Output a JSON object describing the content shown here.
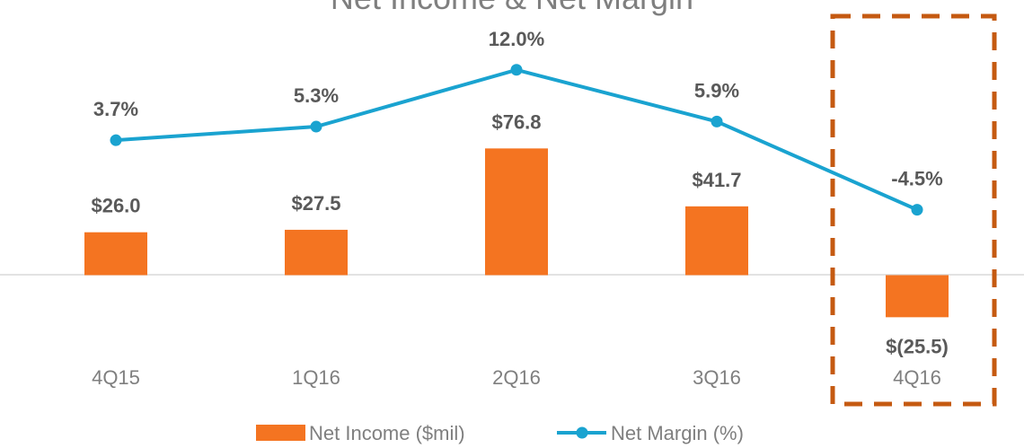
{
  "chart_data": {
    "type": "bar-line",
    "title": "Net Income & Net Margin",
    "categories": [
      "4Q15",
      "1Q16",
      "2Q16",
      "3Q16",
      "4Q16"
    ],
    "series": [
      {
        "name": "Net Income ($mil)",
        "type": "bar",
        "color": "#f47421",
        "values": [
          26.0,
          27.5,
          76.8,
          41.7,
          -25.5
        ],
        "value_labels": [
          "$26.0",
          "$27.5",
          "$76.8",
          "$41.7",
          "$(25.5)"
        ]
      },
      {
        "name": "Net Margin (%)",
        "type": "line",
        "axis": "y2",
        "color": "#1aa3d0",
        "values": [
          3.7,
          5.3,
          12.0,
          5.9,
          -4.5
        ],
        "value_labels": [
          "3.7%",
          "5.3%",
          "12.0%",
          "5.9%",
          "-4.5%"
        ]
      }
    ],
    "ylim": [
      -40,
      145
    ],
    "y2lim": [
      -20,
      16
    ],
    "legend": "bottom"
  }
}
